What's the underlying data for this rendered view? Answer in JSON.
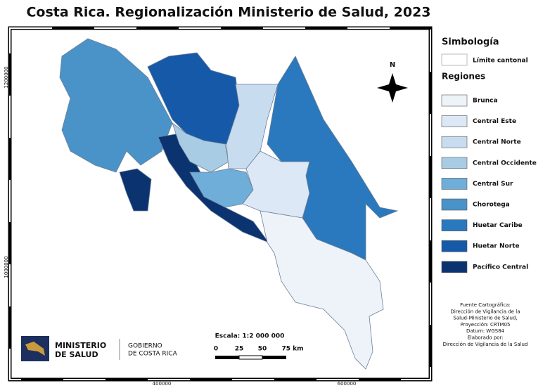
{
  "title": "Costa Rica. Regionalización Ministerio de Salud, 2023",
  "legend": {
    "title": "Simbología",
    "boundary": "Límite cantonal",
    "regions_title": "Regiones",
    "regions": [
      {
        "name": "Brunca",
        "color": "#eef3fa"
      },
      {
        "name": "Central Este",
        "color": "#dce8f5"
      },
      {
        "name": "Central Norte",
        "color": "#c8dcf0"
      },
      {
        "name": "Central Occidente",
        "color": "#a8cce4"
      },
      {
        "name": "Central Sur",
        "color": "#6faed8"
      },
      {
        "name": "Chorotega",
        "color": "#4a93c8"
      },
      {
        "name": "Huetar Caribe",
        "color": "#2a78bd"
      },
      {
        "name": "Huetar Norte",
        "color": "#1659a8"
      },
      {
        "name": "Pacífico Central",
        "color": "#0b3370"
      }
    ]
  },
  "map": {
    "north": "N",
    "coords": {
      "y": [
        "1200000",
        "1000000"
      ],
      "x": [
        "400000",
        "600000"
      ]
    },
    "scale": {
      "label": "Escala:  1:2 000 000",
      "ticks": [
        "0",
        "25",
        "50",
        "75 km"
      ]
    }
  },
  "source": [
    "Fuente Cartográfica:",
    "Dirección de Vigilancia de la",
    "Salud-Ministerio de Salud,",
    "Proyección: CRTM05",
    "Datum: WGS84",
    "Elaborado por:",
    "Dirección de Vigilancia de la Salud"
  ],
  "logo": {
    "ministry": [
      "MINISTERIO",
      "DE SALUD"
    ],
    "government": [
      "GOBIERNO",
      "DE COSTA RICA"
    ]
  }
}
